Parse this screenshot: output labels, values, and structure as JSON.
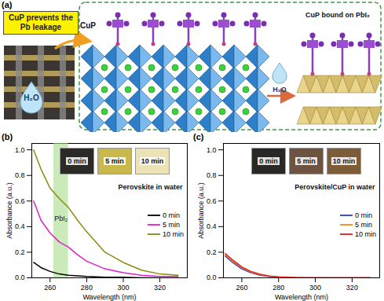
{
  "diagram": {
    "panel_label": "(a)",
    "callout": "CuP prevents the Pb leakage",
    "photo_label": "H₂O",
    "molecule_label": "CuP",
    "arrow_label": "H₂O",
    "product_label": "CuP bound on PbI₂"
  },
  "chart_data": [
    {
      "type": "line",
      "panel_label": "(b)",
      "title": "Perovskite in water",
      "x_label": "Wavelength (nm)",
      "y_label": "Absorbance (a.u.)",
      "x": [
        251,
        255,
        260,
        265,
        270,
        275,
        280,
        290,
        300,
        310,
        320,
        330
      ],
      "series": [
        {
          "name": "0 min",
          "color": "#000000",
          "values": [
            0.12,
            0.08,
            0.05,
            0.03,
            0.02,
            0.015,
            0.01,
            0.005,
            0.005,
            0,
            0,
            0
          ]
        },
        {
          "name": "5 min",
          "color": "#e020c8",
          "values": [
            0.6,
            0.45,
            0.35,
            0.28,
            0.24,
            0.18,
            0.13,
            0.07,
            0.04,
            0.02,
            0.01,
            0.01
          ]
        },
        {
          "name": "10 min",
          "color": "#8a8a10",
          "values": [
            1.0,
            0.85,
            0.7,
            0.62,
            0.55,
            0.45,
            0.36,
            0.2,
            0.12,
            0.06,
            0.03,
            0.02
          ]
        }
      ],
      "annotation": {
        "text": "PbI₂",
        "band": [
          262,
          270
        ]
      },
      "insets": [
        "0 min",
        "5 min",
        "10 min"
      ],
      "xlim": [
        250,
        335
      ],
      "xticks": [
        260,
        280,
        300,
        320
      ],
      "ylim": [
        0,
        1.05
      ],
      "yticks": [
        {
          "value": 0,
          "label": "0.0"
        },
        0.2,
        0.4,
        0.6,
        0.8,
        {
          "value": 1,
          "label": "1.0"
        }
      ],
      "legend": "right"
    },
    {
      "type": "line",
      "panel_label": "(c)",
      "title": "Perovskite/CuP in water",
      "x_label": "Wavelength (nm)",
      "y_label": "Absorbance (a.u.)",
      "x": [
        251,
        255,
        260,
        265,
        270,
        275,
        280,
        290,
        300,
        310,
        320,
        330
      ],
      "series": [
        {
          "name": "0 min",
          "color": "#2a3cc8",
          "values": [
            0.17,
            0.12,
            0.07,
            0.04,
            0.02,
            0.01,
            0.005,
            0,
            0,
            0,
            0,
            0
          ]
        },
        {
          "name": "5 min",
          "color": "#f08a20",
          "values": [
            0.18,
            0.13,
            0.08,
            0.045,
            0.025,
            0.012,
            0.006,
            0,
            0,
            0,
            0,
            0
          ]
        },
        {
          "name": "10 min",
          "color": "#e02020",
          "values": [
            0.19,
            0.14,
            0.085,
            0.05,
            0.028,
            0.014,
            0.007,
            0.002,
            0,
            0,
            0,
            0
          ]
        }
      ],
      "insets": [
        "0 min",
        "5 min",
        "10 min"
      ],
      "xlim": [
        250,
        335
      ],
      "xticks": [
        260,
        280,
        300,
        320
      ],
      "ylim": [
        0,
        1.05
      ],
      "yticks": [
        {
          "value": 0,
          "label": "0.0"
        },
        0.2,
        0.4,
        0.6,
        0.8,
        {
          "value": 1,
          "label": "1.0"
        }
      ],
      "legend": "right"
    }
  ]
}
